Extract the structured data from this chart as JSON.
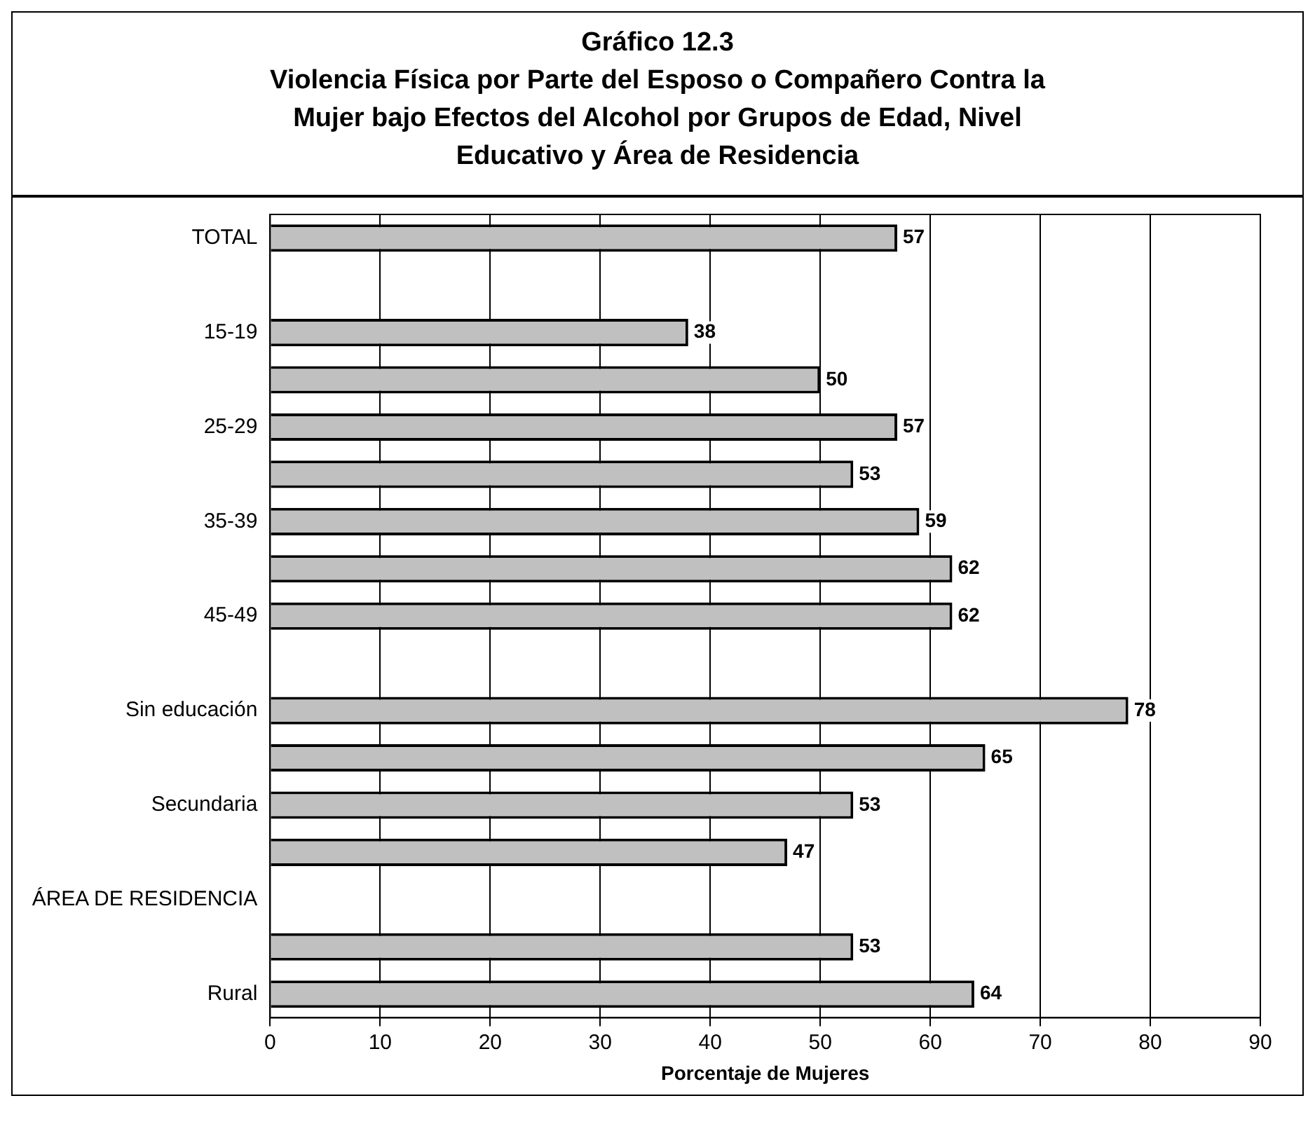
{
  "chart_data": {
    "type": "bar",
    "orientation": "horizontal",
    "title": "Gráfico 12.3",
    "subtitle": "Violencia Física por Parte del Esposo o Compañero Contra la Mujer bajo Efectos del Alcohol por Grupos de Edad, Nivel Educativo y Área de Residencia",
    "xlabel": "Porcentaje de Mujeres",
    "categories": [
      "TOTAL",
      null,
      "15-19",
      null,
      "25-29",
      null,
      "35-39",
      null,
      "45-49",
      null,
      "Sin educación",
      null,
      "Secundaria",
      null,
      "ÁREA DE RESIDENCIA",
      null,
      "Rural"
    ],
    "values": [
      57,
      null,
      38,
      50,
      57,
      53,
      59,
      62,
      62,
      null,
      78,
      65,
      53,
      47,
      null,
      53,
      64
    ],
    "color": "#c0c0c0",
    "xlim": [
      0,
      90
    ],
    "xticks": [
      0,
      10,
      20,
      30,
      40,
      50,
      60,
      70,
      80,
      90
    ],
    "grid": "x",
    "data_labels": true
  }
}
